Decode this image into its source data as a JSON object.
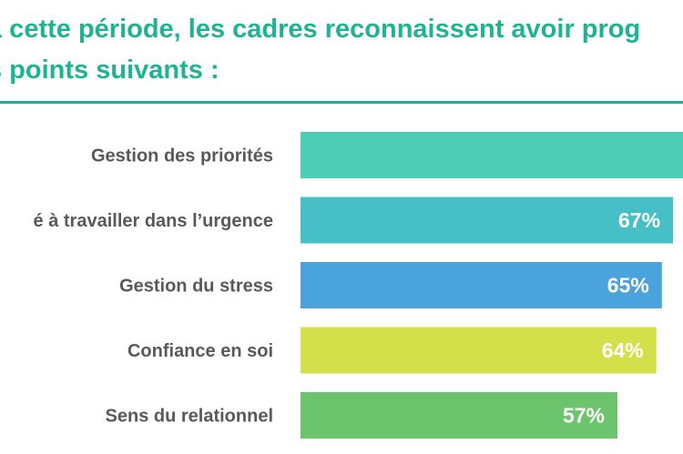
{
  "title": {
    "line1": "à cette période, les cadres reconnaissent avoir prog",
    "line2": "s points suivants :"
  },
  "chart_data": {
    "type": "bar",
    "orientation": "horizontal",
    "categories": [
      "Gestion des priorités",
      "é à travailler dans l’urgence",
      "Gestion du stress",
      "Confiance en soi",
      "Sens du relationnel"
    ],
    "values": [
      null,
      67,
      65,
      64,
      57
    ],
    "value_labels": [
      "",
      "67%",
      "65%",
      "64%",
      "57%"
    ],
    "colors": [
      "#4dcdb6",
      "#46bfc6",
      "#4aa3dc",
      "#d3e04a",
      "#6cc56c"
    ],
    "xlim": [
      0,
      67
    ],
    "grid": false,
    "legend": "none"
  }
}
